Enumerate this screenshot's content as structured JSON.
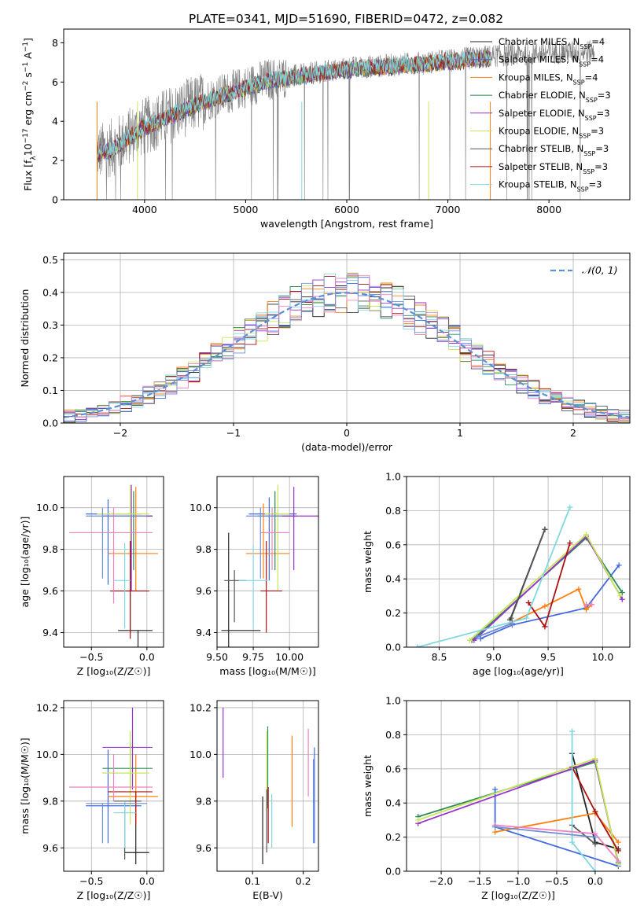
{
  "title": "PLATE=0341, MJD=51690, FIBERID=0472, z=0.082",
  "legend_spectrum": [
    {
      "label": "Chabrier MILES, N",
      "sub": "SSP",
      "suffix": "=4",
      "color": "#222222"
    },
    {
      "label": "Salpeter MILES, N",
      "sub": "SSP",
      "suffix": "=4",
      "color": "#4169e1"
    },
    {
      "label": "Kroupa MILES, N",
      "sub": "SSP",
      "suffix": "=4",
      "color": "#ff7f0e"
    },
    {
      "label": "Chabrier ELODIE, N",
      "sub": "SSP",
      "suffix": "=3",
      "color": "#2e8b57"
    },
    {
      "label": "Salpeter ELODIE, N",
      "sub": "SSP",
      "suffix": "=3",
      "color": "#9932cc"
    },
    {
      "label": "Kroupa ELODIE, N",
      "sub": "SSP",
      "suffix": "=3",
      "color": "#c8e65a"
    },
    {
      "label": "Chabrier STELIB, N",
      "sub": "SSP",
      "suffix": "=3",
      "color": "#555555"
    },
    {
      "label": "Salpeter STELIB, N",
      "sub": "SSP",
      "suffix": "=3",
      "color": "#aa1111"
    },
    {
      "label": "Kroupa STELIB, N",
      "sub": "SSP",
      "suffix": "=3",
      "color": "#7fd8e0"
    }
  ],
  "colors": {
    "data": "#808080",
    "model": "#7fd8e0",
    "grid": "#b0b0b0",
    "normal": "#5b8fd6",
    "series": [
      "#222222",
      "#4169e1",
      "#ff7f0e",
      "#2e8b57",
      "#9932cc",
      "#c8e65a",
      "#555555",
      "#aa1111",
      "#7fd8e0",
      "#ee82c0",
      "#6f8fd9"
    ]
  },
  "chart_data": [
    {
      "id": "spectrum",
      "type": "line",
      "xlabel": "wavelength [Angstrom, rest frame]",
      "ylabel": "Flux [f",
      "ylabel_parts": [
        "Flux [f",
        "λ",
        "10",
        "−17",
        " erg cm",
        "−2",
        " s",
        "−1",
        " A",
        "−1",
        "]"
      ],
      "xlim": [
        3200,
        8800
      ],
      "ylim": [
        0,
        8.7
      ],
      "xticks": [
        4000,
        5000,
        6000,
        7000,
        8000
      ],
      "yticks": [
        0,
        2,
        4,
        6,
        8
      ],
      "data_range": [
        3530,
        8450
      ],
      "model_knots": [
        [
          3530,
          2.4
        ],
        [
          3700,
          2.7
        ],
        [
          3950,
          3.6
        ],
        [
          4200,
          4.2
        ],
        [
          4500,
          4.9
        ],
        [
          4850,
          5.5
        ],
        [
          5200,
          6.1
        ],
        [
          5600,
          6.4
        ],
        [
          6000,
          6.7
        ],
        [
          6400,
          6.85
        ],
        [
          6800,
          7.0
        ],
        [
          7200,
          7.2
        ],
        [
          7600,
          7.4
        ],
        [
          8000,
          7.5
        ],
        [
          8450,
          7.55
        ]
      ]
    },
    {
      "id": "residuals",
      "type": "histogram",
      "xlabel": "(data-model)/error",
      "ylabel": "Normed distribution",
      "xlim": [
        -2.5,
        2.5
      ],
      "ylim": [
        0,
        0.52
      ],
      "xticks": [
        -2,
        -1,
        0,
        1,
        2
      ],
      "yticks": [
        0.0,
        0.1,
        0.2,
        0.3,
        0.4,
        0.5
      ],
      "legend": "𝒩(0, 1)",
      "bin_width": 0.1
    },
    {
      "id": "age-vs-Z",
      "type": "scatter",
      "xlabel": "Z [log₁₀(Z/Z☉)]",
      "ylabel": "age  [log₁₀(age/yr)]",
      "xlim": [
        -0.75,
        0.15
      ],
      "ylim": [
        9.33,
        10.15
      ],
      "xticks": [
        -0.5,
        0.0
      ],
      "yticks": [
        9.4,
        9.6,
        9.8,
        10.0
      ],
      "points": [
        {
          "x": -0.08,
          "y": 9.41,
          "ex": [
            -0.26,
            0.05
          ],
          "ey": [
            9.33,
            9.41
          ],
          "c": 0
        },
        {
          "x": -0.35,
          "y": 9.97,
          "ex": [
            -0.55,
            -0.05
          ],
          "ey": [
            9.63,
            10.04
          ],
          "c": 1
        },
        {
          "x": -0.1,
          "y": 9.78,
          "ex": [
            -0.35,
            0.1
          ],
          "ey": [
            9.6,
            10.1
          ],
          "c": 2
        },
        {
          "x": -0.12,
          "y": 9.96,
          "ex": [
            -0.4,
            0.05
          ],
          "ey": [
            9.7,
            10.08
          ],
          "c": 3
        },
        {
          "x": -0.14,
          "y": 9.96,
          "ex": [
            -0.4,
            0.05
          ],
          "ey": [
            9.6,
            10.11
          ],
          "c": 4
        },
        {
          "x": -0.15,
          "y": 9.97,
          "ex": [
            -0.45,
            0.02
          ],
          "ey": [
            9.62,
            10.11
          ],
          "c": 5
        },
        {
          "x": -0.15,
          "y": 9.6,
          "ex": [
            -0.33,
            0.02
          ],
          "ey": [
            9.4,
            9.84
          ],
          "c": 6
        },
        {
          "x": -0.15,
          "y": 9.6,
          "ex": [
            -0.33,
            0.02
          ],
          "ey": [
            9.37,
            9.84
          ],
          "c": 7
        },
        {
          "x": -0.2,
          "y": 9.65,
          "ex": [
            -0.3,
            -0.15
          ],
          "ey": [
            9.42,
            9.83
          ],
          "c": 8
        },
        {
          "x": -0.3,
          "y": 9.88,
          "ex": [
            -0.7,
            0.05
          ],
          "ey": [
            9.54,
            10.0
          ],
          "c": 9
        },
        {
          "x": -0.4,
          "y": 9.96,
          "ex": [
            -0.55,
            0.0
          ],
          "ey": [
            9.66,
            10.0
          ],
          "c": 10
        }
      ]
    },
    {
      "id": "age-vs-mass",
      "type": "scatter",
      "xlabel": "mass [log₁₀(M/M☉)]",
      "ylabel": "",
      "xlim": [
        9.5,
        10.2
      ],
      "ylim": [
        9.33,
        10.15
      ],
      "xticks": [
        9.5,
        9.75,
        10.0
      ],
      "yticks": [
        9.4,
        9.6,
        9.8,
        10.0
      ],
      "points": [
        {
          "x": 9.58,
          "y": 9.41,
          "ex": [
            9.53,
            9.8
          ],
          "ey": [
            9.33,
            9.88
          ],
          "c": 0
        },
        {
          "x": 9.86,
          "y": 9.97,
          "ex": [
            9.72,
            10.05
          ],
          "ey": [
            9.65,
            10.05
          ],
          "c": 1
        },
        {
          "x": 9.82,
          "y": 9.78,
          "ex": [
            9.7,
            10.0
          ],
          "ey": [
            9.66,
            10.02
          ],
          "c": 2
        },
        {
          "x": 9.9,
          "y": 9.96,
          "ex": [
            9.78,
            10.05
          ],
          "ey": [
            9.7,
            10.08
          ],
          "c": 3
        },
        {
          "x": 10.03,
          "y": 9.96,
          "ex": [
            9.88,
            10.2
          ],
          "ey": [
            9.7,
            10.1
          ],
          "c": 4
        },
        {
          "x": 9.92,
          "y": 9.97,
          "ex": [
            9.83,
            10.0
          ],
          "ey": [
            9.6,
            10.11
          ],
          "c": 5
        },
        {
          "x": 9.62,
          "y": 9.65,
          "ex": [
            9.55,
            9.7
          ],
          "ey": [
            9.45,
            9.7
          ],
          "c": 6
        },
        {
          "x": 9.84,
          "y": 9.6,
          "ex": [
            9.8,
            9.95
          ],
          "ey": [
            9.4,
            9.84
          ],
          "c": 7
        },
        {
          "x": 9.75,
          "y": 9.65,
          "ex": [
            9.65,
            9.85
          ],
          "ey": [
            9.42,
            9.82
          ],
          "c": 8
        },
        {
          "x": 9.88,
          "y": 9.88,
          "ex": [
            9.8,
            10.0
          ],
          "ey": [
            9.7,
            10.0
          ],
          "c": 9
        },
        {
          "x": 9.8,
          "y": 9.96,
          "ex": [
            9.7,
            9.95
          ],
          "ey": [
            9.66,
            10.0
          ],
          "c": 10
        }
      ]
    },
    {
      "id": "mass-weight-vs-age",
      "type": "line",
      "xlabel": "age  [log₁₀(age/yr)]",
      "ylabel": "mass weight",
      "xlim": [
        8.2,
        10.25
      ],
      "ylim": [
        0,
        1
      ],
      "xticks": [
        8.5,
        9.0,
        9.5,
        10.0
      ],
      "yticks": [
        0.0,
        0.2,
        0.4,
        0.6,
        0.8,
        1.0
      ],
      "series": [
        {
          "c": 0,
          "x": [
            9.15,
            9.47
          ],
          "y": [
            0.16,
            0.69
          ]
        },
        {
          "c": 1,
          "x": [
            8.88,
            9.17,
            9.85,
            10.15
          ],
          "y": [
            0.05,
            0.13,
            0.23,
            0.48
          ]
        },
        {
          "c": 2,
          "x": [
            9.15,
            9.47,
            9.78,
            9.85,
            9.9
          ],
          "y": [
            0.14,
            0.24,
            0.34,
            0.22,
            0.25
          ]
        },
        {
          "c": 3,
          "x": [
            8.8,
            9.85,
            10.18
          ],
          "y": [
            0.04,
            0.64,
            0.32
          ]
        },
        {
          "c": 4,
          "x": [
            8.82,
            9.85,
            10.18
          ],
          "y": [
            0.04,
            0.65,
            0.28
          ]
        },
        {
          "c": 5,
          "x": [
            8.78,
            9.85,
            10.16
          ],
          "y": [
            0.04,
            0.66,
            0.3
          ]
        },
        {
          "c": 6,
          "x": [
            9.16,
            9.47
          ],
          "y": [
            0.17,
            0.69
          ]
        },
        {
          "c": 7,
          "x": [
            9.32,
            9.47,
            9.7
          ],
          "y": [
            0.26,
            0.12,
            0.61
          ]
        },
        {
          "c": 8,
          "x": [
            8.3,
            9.3,
            9.7
          ],
          "y": [
            0.0,
            0.17,
            0.82
          ]
        },
        {
          "c": 9,
          "x": [
            9.85,
            9.9
          ],
          "y": [
            0.25,
            0.25
          ]
        },
        {
          "c": 10,
          "x": [
            8.85,
            9.17
          ],
          "y": [
            0.06,
            0.14
          ]
        }
      ]
    },
    {
      "id": "mass-vs-Z",
      "type": "scatter",
      "xlabel": "Z [log₁₀(Z/Z☉)]",
      "ylabel": "mass [log₁₀(M/M☉)]",
      "xlim": [
        -0.75,
        0.15
      ],
      "ylim": [
        9.5,
        10.23
      ],
      "xticks": [
        -0.5,
        0.0
      ],
      "yticks": [
        9.6,
        9.8,
        10.0,
        10.2
      ],
      "points": [
        {
          "x": -0.1,
          "y": 9.58,
          "ex": [
            -0.2,
            0.02
          ],
          "ey": [
            9.53,
            9.79
          ],
          "c": 0
        },
        {
          "x": -0.35,
          "y": 9.78,
          "ex": [
            -0.55,
            -0.05
          ],
          "ey": [
            9.62,
            10.02
          ],
          "c": 1
        },
        {
          "x": -0.1,
          "y": 9.82,
          "ex": [
            -0.35,
            0.1
          ],
          "ey": [
            9.7,
            10.0
          ],
          "c": 2
        },
        {
          "x": -0.15,
          "y": 9.94,
          "ex": [
            -0.4,
            0.05
          ],
          "ey": [
            9.85,
            10.05
          ],
          "c": 3
        },
        {
          "x": -0.13,
          "y": 10.03,
          "ex": [
            -0.4,
            0.05
          ],
          "ey": [
            9.85,
            10.2
          ],
          "c": 4
        },
        {
          "x": -0.15,
          "y": 9.92,
          "ex": [
            -0.4,
            0.02
          ],
          "ey": [
            9.7,
            10.1
          ],
          "c": 5
        },
        {
          "x": -0.2,
          "y": 9.8,
          "ex": [
            -0.3,
            -0.05
          ],
          "ey": [
            9.55,
            9.8
          ],
          "c": 6
        },
        {
          "x": -0.1,
          "y": 9.84,
          "ex": [
            -0.35,
            0.05
          ],
          "ey": [
            9.7,
            9.84
          ],
          "c": 7
        },
        {
          "x": -0.2,
          "y": 9.75,
          "ex": [
            -0.3,
            -0.1
          ],
          "ey": [
            9.6,
            9.8
          ],
          "c": 8
        },
        {
          "x": -0.3,
          "y": 9.86,
          "ex": [
            -0.7,
            0.05
          ],
          "ey": [
            9.8,
            10.0
          ],
          "c": 9
        },
        {
          "x": -0.4,
          "y": 9.79,
          "ex": [
            -0.55,
            0.0
          ],
          "ey": [
            9.62,
            9.79
          ],
          "c": 10
        }
      ]
    },
    {
      "id": "mass-vs-ebv",
      "type": "scatter",
      "xlabel": "E(B-V)",
      "ylabel": "",
      "xlim": [
        0.03,
        0.23
      ],
      "ylim": [
        9.5,
        10.23
      ],
      "xticks": [
        0.1,
        0.2
      ],
      "yticks": [
        9.6,
        9.8,
        10.0,
        10.2
      ],
      "points": [
        {
          "x": 0.12,
          "y": 9.67,
          "ey": [
            9.53,
            9.82
          ],
          "c": 0
        },
        {
          "x": 0.222,
          "y": 9.83,
          "ey": [
            9.62,
            10.03
          ],
          "c": 1
        },
        {
          "x": 0.178,
          "y": 9.89,
          "ey": [
            9.69,
            10.08
          ],
          "c": 2
        },
        {
          "x": 0.13,
          "y": 9.95,
          "ey": [
            9.77,
            10.12
          ],
          "c": 3
        },
        {
          "x": 0.042,
          "y": 10.05,
          "ey": [
            9.9,
            10.2
          ],
          "c": 4
        },
        {
          "x": 0.128,
          "y": 9.94,
          "ey": [
            9.76,
            10.1
          ],
          "c": 5
        },
        {
          "x": 0.128,
          "y": 9.72,
          "ey": [
            9.58,
            9.85
          ],
          "c": 6
        },
        {
          "x": 0.131,
          "y": 9.75,
          "ey": [
            9.62,
            9.86
          ],
          "c": 7
        },
        {
          "x": 0.138,
          "y": 9.72,
          "ey": [
            9.6,
            9.83
          ],
          "c": 8
        },
        {
          "x": 0.21,
          "y": 9.96,
          "ey": [
            9.82,
            10.11
          ],
          "c": 9
        },
        {
          "x": 0.22,
          "y": 9.8,
          "ey": [
            9.62,
            9.98
          ],
          "c": 10
        }
      ]
    },
    {
      "id": "mass-weight-vs-Z",
      "type": "line",
      "xlabel": "Z [log₁₀(Z/Z☉)]",
      "ylabel": "mass weight",
      "xlim": [
        -2.45,
        0.45
      ],
      "ylim": [
        0,
        1
      ],
      "xticks": [
        -2.0,
        -1.5,
        -1.0,
        -0.5,
        0.0
      ],
      "yticks": [
        0.0,
        0.2,
        0.4,
        0.6,
        0.8,
        1.0
      ],
      "series": [
        {
          "c": 0,
          "x": [
            -0.3,
            0.0,
            0.3
          ],
          "y": [
            0.69,
            0.17,
            0.13
          ]
        },
        {
          "c": 1,
          "x": [
            -1.3,
            -1.3,
            0.3
          ],
          "y": [
            0.48,
            0.26,
            0.03
          ]
        },
        {
          "c": 2,
          "x": [
            -1.3,
            0.0,
            0.3
          ],
          "y": [
            0.23,
            0.34,
            0.17
          ]
        },
        {
          "c": 3,
          "x": [
            -2.3,
            0.0,
            0.3
          ],
          "y": [
            0.32,
            0.64,
            0.05
          ]
        },
        {
          "c": 4,
          "x": [
            -2.3,
            0.0,
            0.3
          ],
          "y": [
            0.28,
            0.65,
            0.04
          ]
        },
        {
          "c": 5,
          "x": [
            -2.3,
            0.0,
            0.3
          ],
          "y": [
            0.3,
            0.66,
            0.04
          ]
        },
        {
          "c": 6,
          "x": [
            -0.3,
            0.0
          ],
          "y": [
            0.27,
            0.16
          ]
        },
        {
          "c": 7,
          "x": [
            -0.3,
            0.0,
            0.3
          ],
          "y": [
            0.61,
            0.35,
            0.12
          ]
        },
        {
          "c": 8,
          "x": [
            -0.3,
            -0.3,
            0.0
          ],
          "y": [
            0.82,
            0.17,
            0.0
          ]
        },
        {
          "c": 9,
          "x": [
            -1.3,
            0.0,
            0.3
          ],
          "y": [
            0.27,
            0.22,
            0.06
          ]
        },
        {
          "c": 10,
          "x": [
            -1.3,
            0.0
          ],
          "y": [
            0.26,
            0.2
          ]
        }
      ]
    }
  ]
}
